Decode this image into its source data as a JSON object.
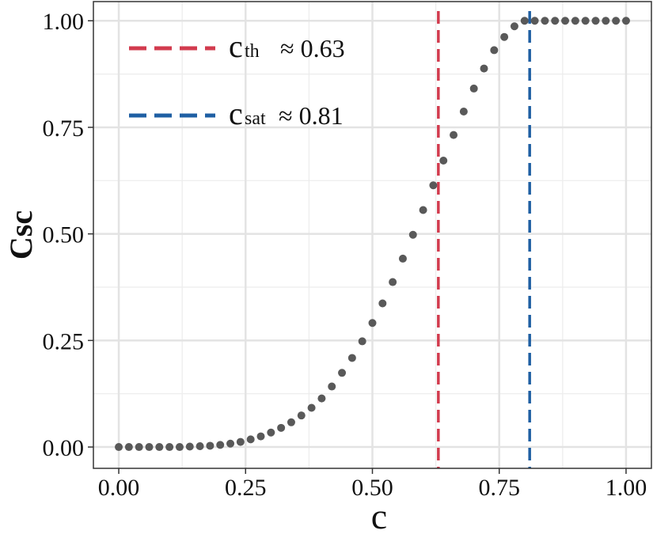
{
  "chart_data": {
    "type": "scatter",
    "title": "",
    "xlabel": "c",
    "ylabel": "Csc",
    "xlim": [
      -0.05,
      1.05
    ],
    "ylim": [
      -0.05,
      1.045
    ],
    "xticks": [
      0.0,
      0.25,
      0.5,
      0.75,
      1.0
    ],
    "xtick_labels": [
      "0.00",
      "0.25",
      "0.50",
      "0.75",
      "1.00"
    ],
    "yticks": [
      0.0,
      0.25,
      0.5,
      0.75,
      1.0
    ],
    "ytick_labels": [
      "0.00",
      "0.25",
      "0.50",
      "0.75",
      "1.00"
    ],
    "grid": true,
    "legend_position": "top-left",
    "series": [
      {
        "name": "Csc",
        "color": "#595959",
        "x": [
          0.0,
          0.02,
          0.04,
          0.06,
          0.08,
          0.1,
          0.12,
          0.14,
          0.16,
          0.18,
          0.2,
          0.22,
          0.24,
          0.26,
          0.28,
          0.3,
          0.32,
          0.34,
          0.36,
          0.38,
          0.4,
          0.42,
          0.44,
          0.46,
          0.48,
          0.5,
          0.52,
          0.54,
          0.56,
          0.58,
          0.6,
          0.62,
          0.64,
          0.66,
          0.68,
          0.7,
          0.72,
          0.74,
          0.76,
          0.78,
          0.8,
          0.82,
          0.84,
          0.86,
          0.88,
          0.9,
          0.92,
          0.94,
          0.96,
          0.98,
          1.0
        ],
        "y": [
          0.0,
          0.0,
          0.0,
          0.0,
          0.0,
          0.0,
          0.0,
          0.001,
          0.002,
          0.003,
          0.005,
          0.008,
          0.012,
          0.018,
          0.025,
          0.034,
          0.045,
          0.058,
          0.074,
          0.092,
          0.114,
          0.142,
          0.174,
          0.209,
          0.248,
          0.291,
          0.337,
          0.387,
          0.442,
          0.498,
          0.556,
          0.614,
          0.672,
          0.732,
          0.787,
          0.841,
          0.888,
          0.931,
          0.962,
          0.987,
          1.0,
          1.0,
          1.0,
          1.0,
          1.0,
          1.0,
          1.0,
          1.0,
          1.0,
          1.0,
          1.0
        ]
      }
    ],
    "vlines": [
      {
        "name": "c_th",
        "value": 0.63,
        "color": "#d23b4e",
        "symbol": "c",
        "subscript": "th",
        "label": "≈ 0.63"
      },
      {
        "name": "c_sat",
        "value": 0.81,
        "color": "#1f5fa3",
        "symbol": "c",
        "subscript": "sat",
        "label": "≈ 0.81"
      }
    ]
  }
}
